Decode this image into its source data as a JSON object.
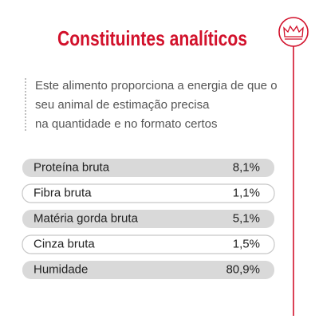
{
  "header": {
    "title": "Constituintes analíticos"
  },
  "description": [
    "Este alimento proporciona a energia de que o",
    "seu animal de estimação precisa",
    "na quantidade e no formato certos"
  ],
  "table": {
    "rows": [
      [
        "Proteína bruta",
        "8,1%"
      ],
      [
        "Fibra bruta",
        "1,1%"
      ],
      [
        "Matéria gorda bruta",
        "5,1%"
      ],
      [
        "Cinza bruta",
        "1,5%"
      ],
      [
        "Humidade",
        "80,9%"
      ]
    ]
  }
}
